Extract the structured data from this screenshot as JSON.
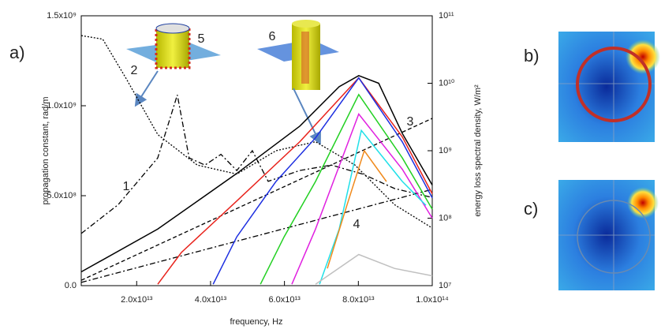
{
  "chart_data": {
    "type": "line",
    "xlabel": "frequency, Hz",
    "ylabel": "propagation constant, rad/m",
    "y2label": "energy loss spectral density, W/m²",
    "xlim": [
      5000000000000.0,
      100000000000000.0
    ],
    "ylim": [
      0,
      1500000000.0
    ],
    "y2lim": [
      10000000.0,
      100000000000.0
    ],
    "y2log": true,
    "xticks": [
      {
        "value": 20000000000000.0,
        "label": "2.0x10¹³"
      },
      {
        "value": 40000000000000.0,
        "label": "4.0x10¹³"
      },
      {
        "value": 60000000000000.0,
        "label": "6.0x10¹³"
      },
      {
        "value": 80000000000000.0,
        "label": "8.0x10¹³"
      },
      {
        "value": 100000000000000.0,
        "label": "1.0x10¹⁴"
      }
    ],
    "yticks": [
      {
        "value": 0,
        "label": "0.0"
      },
      {
        "value": 500000000.0,
        "label": "5.0x10⁸"
      },
      {
        "value": 1000000000.0,
        "label": "1.0x10⁹"
      },
      {
        "value": 1500000000.0,
        "label": "1.5x10⁹"
      }
    ],
    "y2ticks": [
      {
        "value": 10000000.0,
        "label": "10⁷"
      },
      {
        "value": 100000000.0,
        "label": "10⁸"
      },
      {
        "value": 1000000000.0,
        "label": "10⁹"
      },
      {
        "value": 10000000000.0,
        "label": "10¹⁰"
      },
      {
        "value": 100000000000.0,
        "label": "10¹¹"
      }
    ],
    "annotations": [
      "1",
      "2",
      "3",
      "4",
      "5",
      "6"
    ],
    "series": [
      {
        "color": "#000000",
        "dash": "dashdot",
        "x": [
          5000000000000.0,
          15000000000000.0,
          25700000000000.0,
          31000000000000.0,
          34200000000000.0,
          38500000000000.0,
          42800000000000.0,
          47100000000000.0,
          51300000000000.0,
          55600000000000.0,
          64100000000000.0,
          72700000000000.0,
          81200000000000.0,
          89800000000000.0,
          100000000000000.0
        ],
        "values": [
          290000000.0,
          450000000.0,
          710000000.0,
          1060000000.0,
          710000000.0,
          670000000.0,
          730000000.0,
          640000000.0,
          750000000.0,
          580000000.0,
          640000000.0,
          670000000.0,
          620000000.0,
          540000000.0,
          490000000.0
        ]
      },
      {
        "color": "#000000",
        "dash": "dotted",
        "x": [
          5000000000000.0,
          10800000000000.0,
          17200000000000.0,
          25700000000000.0,
          36400000000000.0,
          47100000000000.0,
          57700000000000.0,
          68400000000000.0,
          79100000000000.0,
          89800000000000.0,
          100000000000000.0
        ],
        "values": [
          1390000000.0,
          1370000000.0,
          1150000000.0,
          840000000.0,
          670000000.0,
          620000000.0,
          750000000.0,
          800000000.0,
          670000000.0,
          450000000.0,
          320000000.0
        ]
      },
      {
        "color": "#000000",
        "dash": "dashed",
        "x": [
          5000000000000.0,
          100000000000000.0
        ],
        "values": [
          30000000.0,
          930000000.0
        ]
      },
      {
        "color": "#000000",
        "dash": "dashdot",
        "x": [
          5000000000000.0,
          100000000000000.0
        ],
        "values": [
          18000000.0,
          535000000.0
        ]
      },
      {
        "color": "#000000",
        "dash": "solid",
        "axis": "y2",
        "x": [
          5000000000000.0,
          25700000000000.0,
          47100000000000.0,
          64100000000000.0,
          74800000000000.0,
          80100000000000.0,
          85500000000000.0,
          91900000000000.0,
          100000000000000.0
        ],
        "values": [
          16000000.0,
          69000000.0,
          460000000.0,
          2300000000.0,
          8900000000.0,
          13000000000.0,
          10000000000.0,
          1800000000.0,
          310000000.0
        ]
      },
      {
        "color": "#e8231c",
        "dash": "solid",
        "axis": "y2",
        "x": [
          25700000000000.0,
          32100000000000.0,
          47100000000000.0,
          64100000000000.0,
          80100000000000.0,
          91900000000000.0,
          100000000000000.0
        ],
        "values": [
          10500000.0,
          31000000.0,
          180000000.0,
          1350000000.0,
          12000000000.0,
          1600000000.0,
          230000000.0
        ]
      },
      {
        "color": "#1c2ee0",
        "dash": "solid",
        "axis": "y2",
        "x": [
          40700000000000.0,
          47100000000000.0,
          57700000000000.0,
          68400000000000.0,
          80100000000000.0,
          91900000000000.0,
          100000000000000.0
        ],
        "values": [
          10500000.0,
          53000000.0,
          350000000.0,
          1550000000.0,
          12000000000.0,
          1350000000.0,
          200000000.0
        ]
      },
      {
        "color": "#22d022",
        "dash": "solid",
        "axis": "y2",
        "x": [
          53500000000000.0,
          59900000000000.0,
          68400000000000.0,
          80100000000000.0,
          91900000000000.0,
          100000000000000.0
        ],
        "values": [
          10500000.0,
          53000000.0,
          350000000.0,
          6800000000.0,
          780000000.0,
          136000000.0
        ]
      },
      {
        "color": "#e020e0",
        "dash": "solid",
        "axis": "y2",
        "x": [
          62000000000000.0,
          68400000000000.0,
          80100000000000.0,
          91900000000000.0,
          100000000000000.0
        ],
        "values": [
          10500000.0,
          69000000.0,
          3500000000.0,
          530000000.0,
          100000000.0
        ]
      },
      {
        "color": "#20e0e8",
        "dash": "solid",
        "axis": "y2",
        "x": [
          69500000000000.0,
          74800000000000.0,
          80800000000000.0,
          91900000000000.0,
          98300000000000.0
        ],
        "values": [
          10500000.0,
          69000000.0,
          2000000000.0,
          350000000.0,
          155000000.0
        ]
      },
      {
        "color": "#f08a1c",
        "dash": "solid",
        "axis": "y2",
        "x": [
          71600000000000.0,
          76900000000000.0,
          81600000000000.0,
          87600000000000.0
        ],
        "values": [
          18000000.0,
          155000000.0,
          1000000000.0,
          350000000.0
        ]
      },
      {
        "color": "#c0c0c0",
        "dash": "solid",
        "axis": "y2",
        "x": [
          68400000000000.0,
          80100000000000.0,
          89800000000000.0,
          100000000000000.0
        ],
        "values": [
          10500000.0,
          29000000.0,
          18000000.0,
          14000000.0
        ]
      }
    ]
  },
  "panels": [
    "a)",
    "b)",
    "c)"
  ]
}
